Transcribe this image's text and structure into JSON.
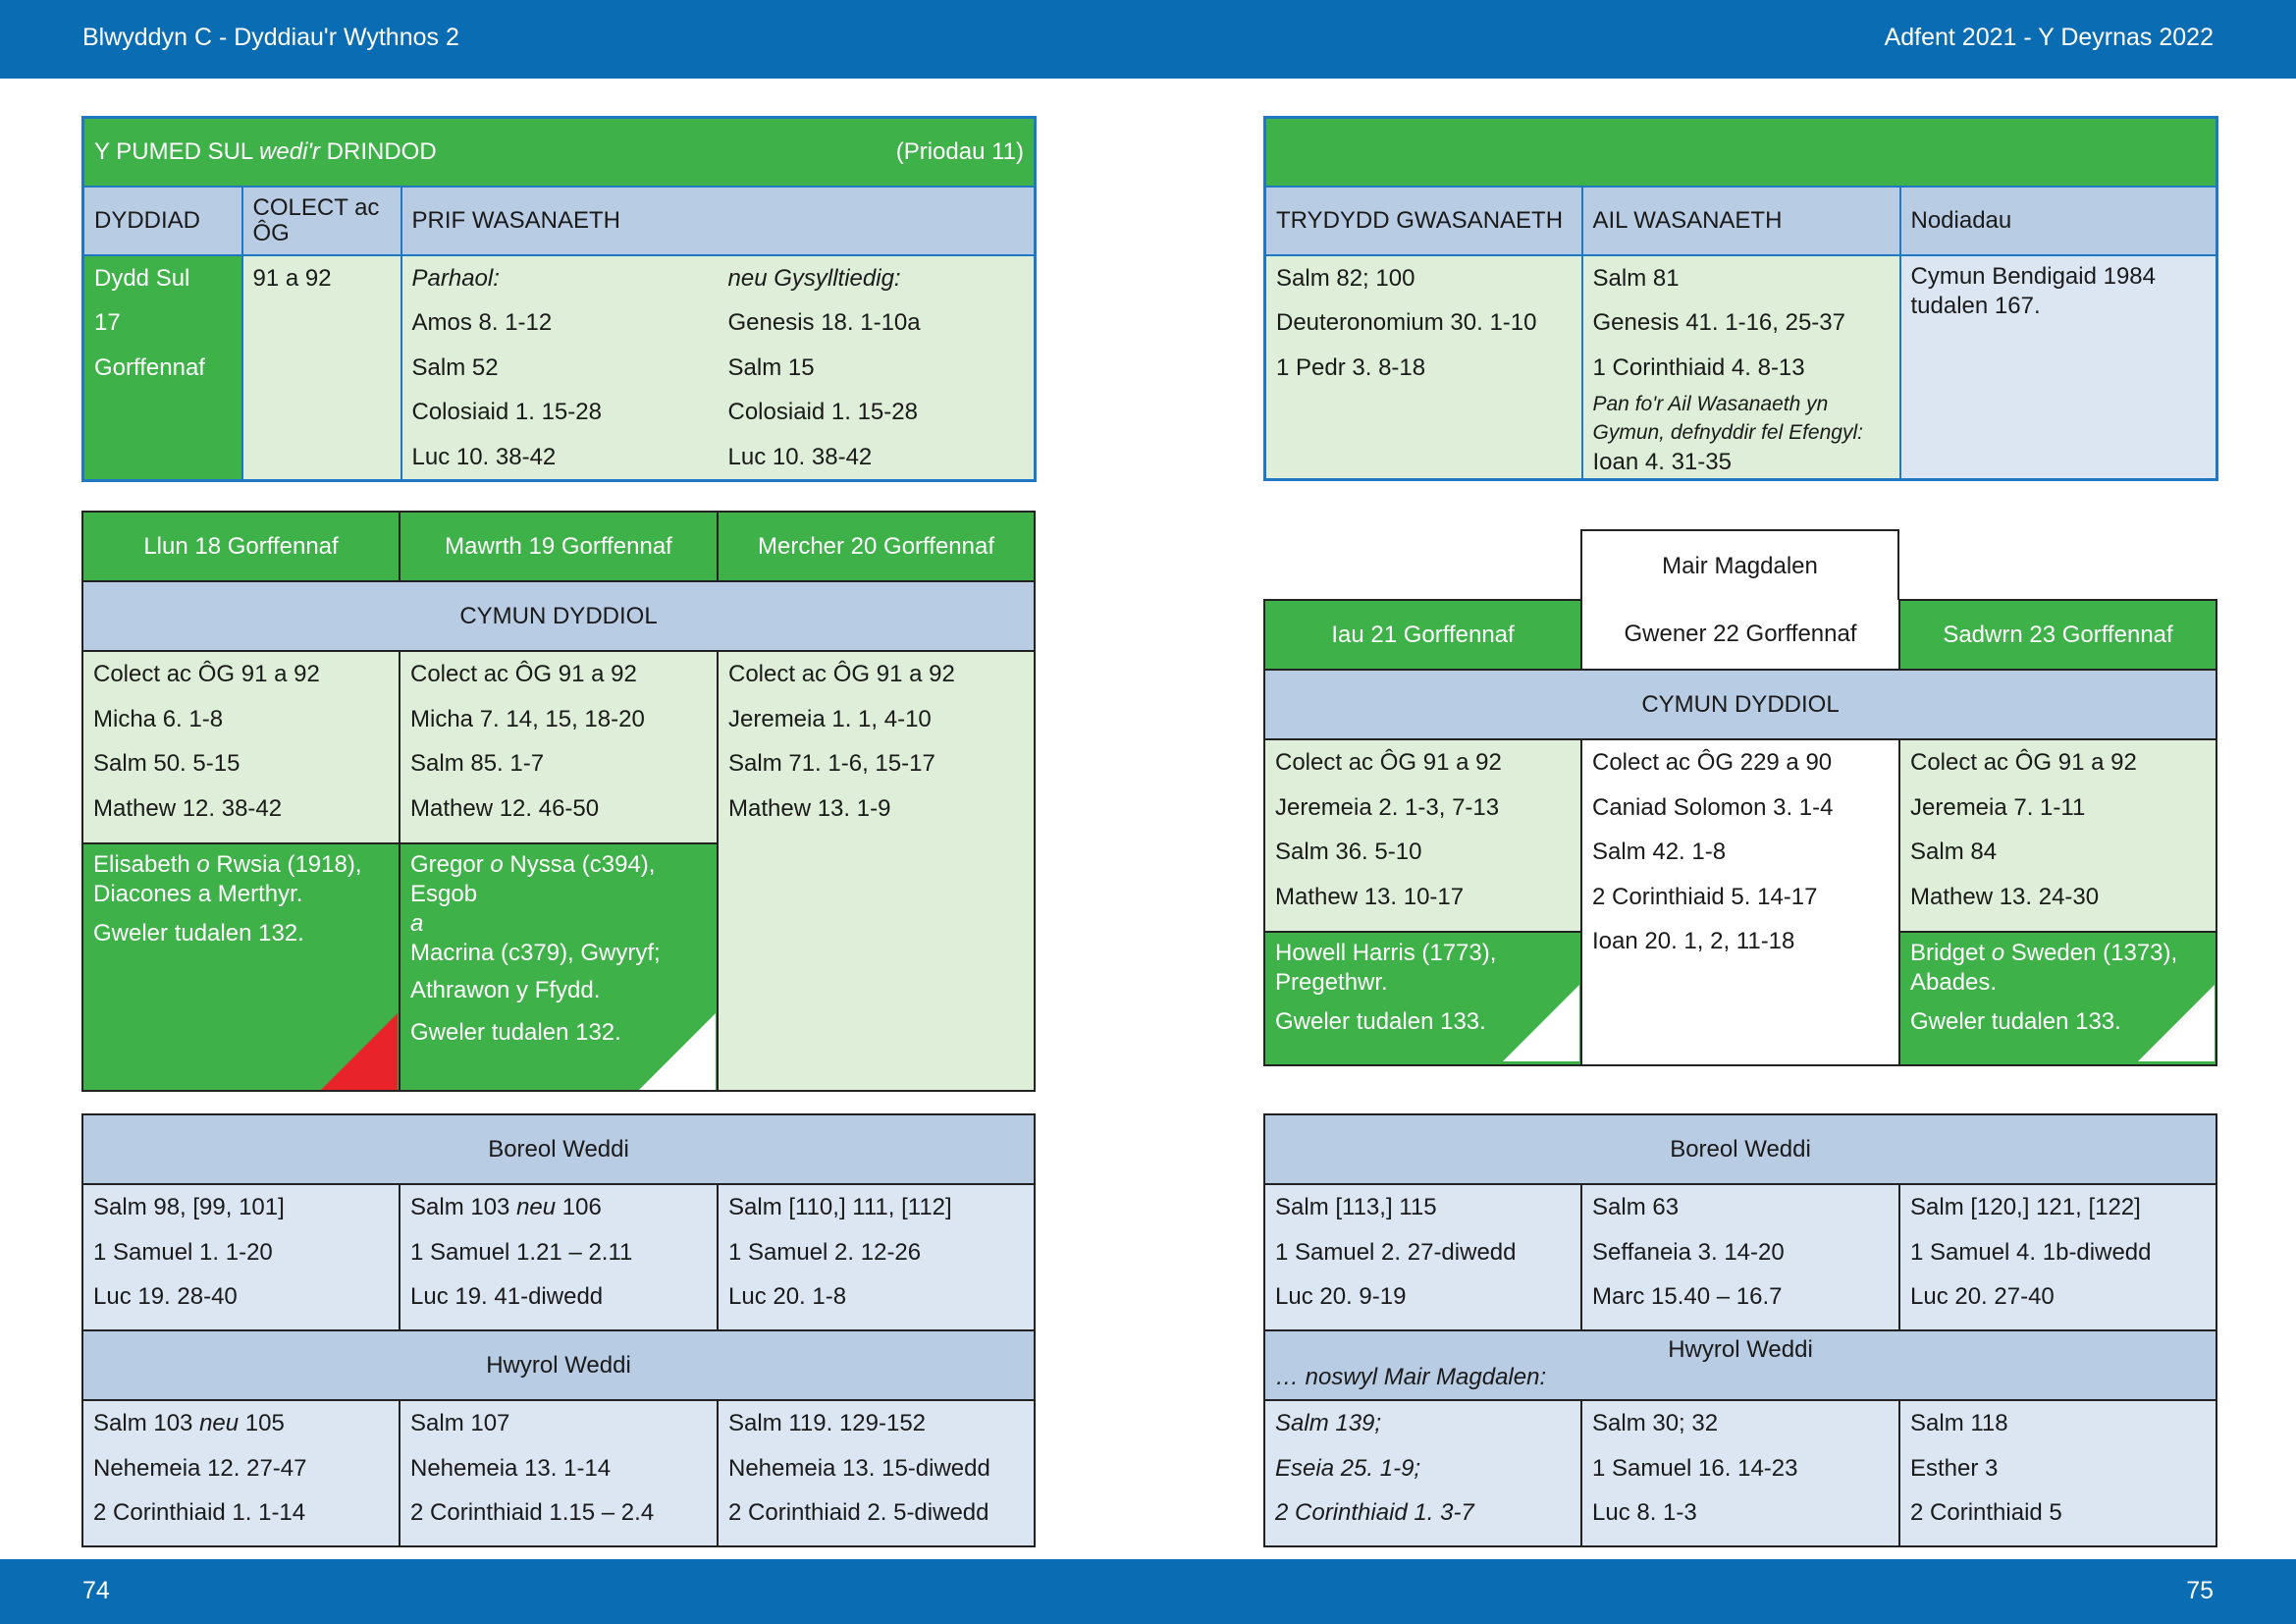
{
  "header": {
    "left": "Blwyddyn  C - Dyddiau'r Wythnos 2",
    "right": "Adfent 2021 - Y Deyrnas 2022"
  },
  "footer": {
    "left_page": "74",
    "right_page": "75"
  },
  "colors": {
    "green": "#3fb149",
    "light_green": "#deeed8",
    "blue_header": "#b8cce4",
    "light_blue": "#dce6f2",
    "bar": "#0a6db3",
    "red_corner": "#e8232a"
  },
  "sunday": {
    "title_pre": "Y PUMED SUL ",
    "title_italic": "wedi'r",
    "title_post": " DRINDOD",
    "ref": "(Priodau 11)",
    "col_date": "DYDDIAD",
    "col_collect": "COLECT ac ÔG",
    "col_main": "PRIF WASANAETH",
    "date_lines": [
      "Dydd Sul",
      "17",
      "Gorffennaf"
    ],
    "collect": "91 a 92",
    "main_a": [
      "Parhaol:",
      "Amos 8. 1-12",
      "Salm 52",
      "Colosiaid 1. 15-28",
      "Luc 10. 38-42"
    ],
    "main_b": [
      "neu Gysylltiedig:",
      "Genesis 18. 1-10a",
      "Salm 15",
      "Colosiaid 1. 15-28",
      "Luc 10. 38-42"
    ]
  },
  "sunday_right": {
    "col_third": "TRYDYDD GWASANAETH",
    "col_second": "AIL WASANAETH",
    "col_notes": "Nodiadau",
    "third": [
      "Salm 82; 100",
      "Deuteronomium 30. 1-10",
      "1 Pedr 3. 8-18"
    ],
    "second": [
      "Salm 81",
      "Genesis 41. 1-16, 25-37",
      "1 Corinthiaid 4. 8-13"
    ],
    "second_note": "Pan fo'r Ail Wasanaeth yn Gymun, defnyddir fel Efengyl:",
    "second_last": "Ioan 4. 31-35",
    "notes": "Cymun Bendigaid 1984 tudalen 167."
  },
  "week_left": {
    "days": [
      "Llun 18 Gorffennaf",
      "Mawrth 19 Gorffennaf",
      "Mercher 20 Gorffennaf"
    ],
    "section": "CYMUN DYDDIOL",
    "readings": [
      [
        "Colect ac ÔG 91 a 92",
        "Micha 6. 1-8",
        "Salm 50. 5-15",
        "Mathew 12. 38-42"
      ],
      [
        "Colect ac ÔG 91 a 92",
        "Micha 7. 14, 15, 18-20",
        "Salm 85. 1-7",
        "Mathew 12. 46-50"
      ],
      [
        "Colect ac ÔG 91 a 92",
        "Jeremeia 1. 1, 4-10",
        "Salm 71. 1-6, 15-17",
        "Mathew 13. 1-9"
      ]
    ],
    "commem_mon_pre": "Elisabeth ",
    "commem_mon_it": "o",
    "commem_mon_post": " Rwsia (1918), Diacones a Merthyr.",
    "commem_mon_ref": "Gweler tudalen 132.",
    "commem_tue_pre": "Gregor ",
    "commem_tue_it": "o",
    "commem_tue_post": " Nyssa (c394), Esgob",
    "commem_tue_and": "a",
    "commem_tue_2": "Macrina (c379), Gwyryf;",
    "commem_tue_3": "Athrawon y Ffydd.",
    "commem_tue_ref": "Gweler tudalen 132."
  },
  "week_right": {
    "feast": "Mair Magdalen",
    "days": [
      "Iau 21 Gorffennaf",
      "Gwener 22 Gorffennaf",
      "Sadwrn 23 Gorffennaf"
    ],
    "section": "CYMUN DYDDIOL",
    "readings": [
      [
        "Colect ac ÔG 91 a 92",
        "Jeremeia 2. 1-3, 7-13",
        "Salm 36. 5-10",
        "Mathew 13. 10-17"
      ],
      [
        "Colect ac ÔG 229 a 90",
        "Caniad Solomon 3. 1-4",
        "Salm 42. 1-8",
        "2 Corinthiaid 5. 14-17",
        "Ioan 20. 1, 2, 11-18"
      ],
      [
        "Colect ac ÔG 91 a 92",
        "Jeremeia 7. 1-11",
        "Salm 84",
        "Mathew 13. 24-30"
      ]
    ],
    "commem_thu": "Howell Harris (1773), Pregethwr.",
    "commem_thu_ref": "Gweler tudalen 133.",
    "commem_sat_pre": "Bridget ",
    "commem_sat_it": "o",
    "commem_sat_post": " Sweden (1373), Abades.",
    "commem_sat_ref": "Gweler tudalen 133."
  },
  "office_left": {
    "morning": "Boreol Weddi",
    "evening": "Hwyrol Weddi",
    "morning_rows": [
      [
        "Salm 98, [99, 101]",
        "1 Samuel 1. 1-20",
        "Luc 19. 28-40"
      ],
      [
        "Salm 103 |neu| 106",
        "1 Samuel 1.21 – 2.11",
        "Luc 19. 41-diwedd"
      ],
      [
        "Salm [110,] 111, [112]",
        "1 Samuel 2. 12-26",
        "Luc 20. 1-8"
      ]
    ],
    "evening_rows": [
      [
        "Salm 103 |neu| 105",
        "Nehemeia 12. 27-47",
        "2 Corinthiaid 1. 1-14"
      ],
      [
        "Salm 107",
        "Nehemeia 13. 1-14",
        "2 Corinthiaid 1.15 – 2.4"
      ],
      [
        "Salm 119. 129-152",
        "Nehemeia 13. 15-diwedd",
        "2 Corinthiaid 2. 5-diwedd"
      ]
    ]
  },
  "office_right": {
    "morning": "Boreol Weddi",
    "evening": "Hwyrol Weddi",
    "eve_note": "… noswyl Mair Magdalen:",
    "morning_rows": [
      [
        "Salm [113,] 115",
        "1 Samuel 2. 27-diwedd",
        "Luc 20. 9-19"
      ],
      [
        "Salm 63",
        "Seffaneia 3. 14-20",
        "Marc 15.40 – 16.7"
      ],
      [
        "Salm [120,] 121, [122]",
        "1 Samuel 4. 1b-diwedd",
        "Luc 20. 27-40"
      ]
    ],
    "evening_rows": [
      [
        "Salm 139;",
        "Eseia 25. 1-9;",
        "2 Corinthiaid 1. 3-7"
      ],
      [
        "Salm 30; 32",
        "1 Samuel 16. 14-23",
        "Luc 8. 1-3"
      ],
      [
        "Salm 118",
        "Esther 3",
        "2 Corinthiaid 5"
      ]
    ]
  }
}
